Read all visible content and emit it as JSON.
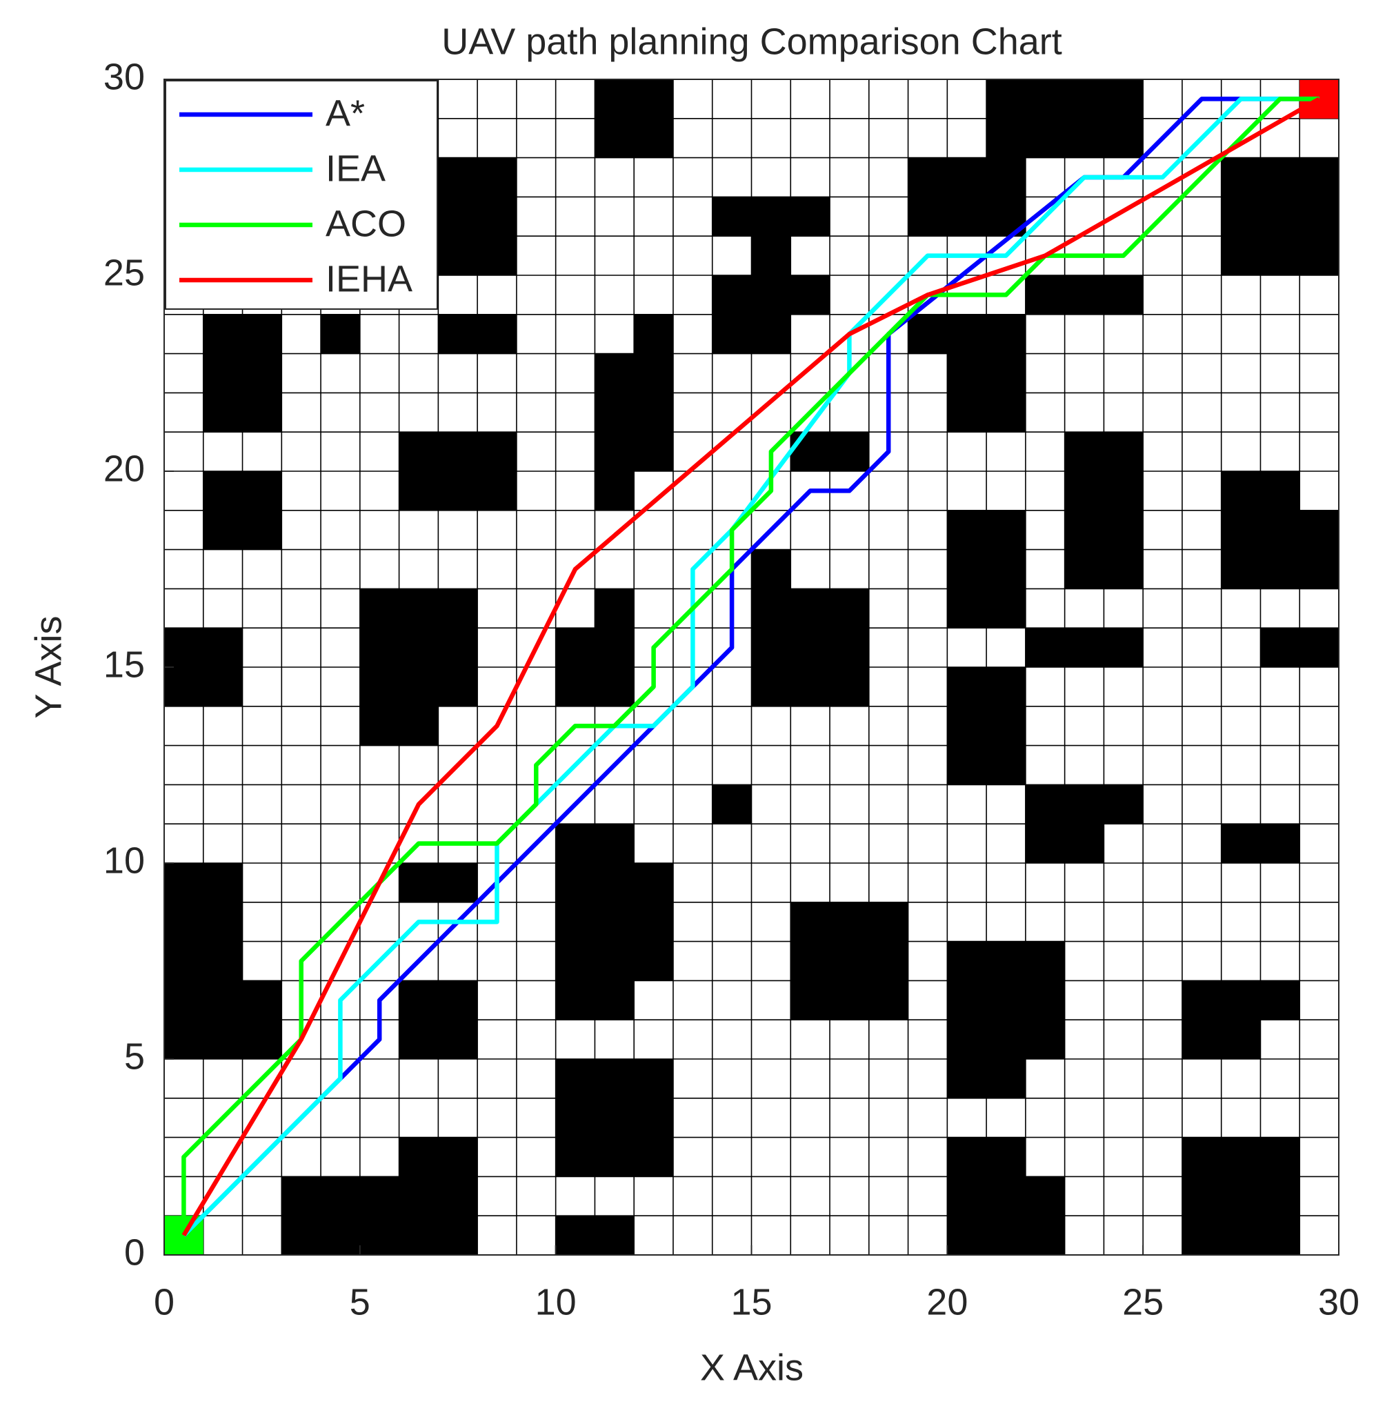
{
  "chart_data": {
    "type": "line",
    "title": "UAV path planning Comparison Chart",
    "x_label": "X Axis",
    "y_label": "Y Axis",
    "xlim": [
      0,
      30
    ],
    "ylim": [
      0,
      30
    ],
    "xticks": [
      0,
      5,
      10,
      15,
      20,
      25,
      30
    ],
    "yticks": [
      0,
      5,
      10,
      15,
      20,
      25,
      30
    ],
    "cell_size": 1,
    "obstacle_color": "#000000",
    "legend": "upper left",
    "start": {
      "cell": [
        0,
        0,
        1,
        1
      ],
      "color": "#00ff00"
    },
    "goal": {
      "cell": [
        29,
        29,
        30,
        30
      ],
      "color": "#ff0000"
    },
    "obstacles": [
      [
        11,
        28,
        13,
        30
      ],
      [
        21,
        28,
        25,
        30
      ],
      [
        7,
        25,
        9,
        28
      ],
      [
        19,
        26,
        22,
        28
      ],
      [
        27,
        25,
        30,
        28
      ],
      [
        14,
        26,
        17,
        27
      ],
      [
        15,
        25,
        16,
        26
      ],
      [
        14,
        24,
        17,
        25
      ],
      [
        14,
        23,
        16,
        24
      ],
      [
        22,
        24,
        25,
        25
      ],
      [
        1,
        21,
        3,
        24
      ],
      [
        4,
        23,
        5,
        24
      ],
      [
        7,
        23,
        9,
        24
      ],
      [
        12,
        23,
        13,
        24
      ],
      [
        11,
        20,
        13,
        23
      ],
      [
        11,
        19,
        12,
        20
      ],
      [
        19,
        23,
        22,
        24
      ],
      [
        20,
        21,
        22,
        23
      ],
      [
        6,
        19,
        9,
        21
      ],
      [
        16,
        20,
        18,
        21
      ],
      [
        1,
        18,
        3,
        20
      ],
      [
        23,
        17,
        25,
        21
      ],
      [
        27,
        19,
        29,
        20
      ],
      [
        27,
        17,
        30,
        19
      ],
      [
        20,
        16,
        22,
        19
      ],
      [
        15,
        17,
        16,
        18
      ],
      [
        15,
        14,
        18,
        17
      ],
      [
        5,
        14,
        8,
        17
      ],
      [
        5,
        13,
        7,
        14
      ],
      [
        11,
        16,
        12,
        17
      ],
      [
        10,
        14,
        12,
        16
      ],
      [
        0,
        14,
        2,
        16
      ],
      [
        22,
        15,
        25,
        16
      ],
      [
        28,
        15,
        30,
        16
      ],
      [
        20,
        12,
        22,
        15
      ],
      [
        14,
        11,
        15,
        12
      ],
      [
        22,
        11,
        25,
        12
      ],
      [
        22,
        10,
        24,
        11
      ],
      [
        27,
        10,
        29,
        11
      ],
      [
        10,
        10,
        12,
        11
      ],
      [
        10,
        7,
        13,
        10
      ],
      [
        10,
        6,
        12,
        7
      ],
      [
        6,
        9,
        8,
        10
      ],
      [
        0,
        7,
        2,
        10
      ],
      [
        0,
        5,
        3,
        7
      ],
      [
        16,
        6,
        19,
        9
      ],
      [
        20,
        5,
        23,
        8
      ],
      [
        20,
        4,
        22,
        5
      ],
      [
        6,
        5,
        8,
        7
      ],
      [
        26,
        6,
        29,
        7
      ],
      [
        26,
        5,
        28,
        6
      ],
      [
        10,
        2,
        13,
        5
      ],
      [
        6,
        2,
        8,
        3
      ],
      [
        3,
        0,
        8,
        2
      ],
      [
        10,
        0,
        12,
        1
      ],
      [
        20,
        2,
        22,
        3
      ],
      [
        20,
        0,
        23,
        2
      ],
      [
        26,
        0,
        29,
        3
      ]
    ],
    "series": [
      {
        "name": "A*",
        "color": "#0000ff",
        "x": [
          0.5,
          4.5,
          5.5,
          5.5,
          14.5,
          14.5,
          16.5,
          17.5,
          18.5,
          18.5,
          23.5,
          24.5,
          26.5,
          29.5
        ],
        "y": [
          0.5,
          4.5,
          5.5,
          6.5,
          15.5,
          17.5,
          19.5,
          19.5,
          20.5,
          23.5,
          27.5,
          27.5,
          29.5,
          29.5
        ]
      },
      {
        "name": "IEA",
        "color": "#00ffff",
        "x": [
          0.5,
          4.5,
          4.5,
          6.5,
          8.5,
          8.5,
          11.5,
          12.5,
          13.5,
          13.5,
          14.5,
          17.5,
          17.5,
          19.5,
          21.5,
          23.5,
          24.5,
          25.5,
          27.5,
          29.5
        ],
        "y": [
          0.5,
          4.5,
          6.5,
          8.5,
          8.5,
          10.5,
          13.5,
          13.5,
          14.5,
          17.5,
          18.5,
          22.5,
          23.5,
          25.5,
          25.5,
          27.5,
          27.5,
          27.5,
          29.5,
          29.5
        ]
      },
      {
        "name": "ACO",
        "color": "#00ff00",
        "x": [
          0.5,
          0.5,
          3.5,
          3.5,
          6.5,
          8.5,
          9.5,
          9.5,
          10.5,
          11.5,
          12.5,
          12.5,
          14.5,
          14.5,
          15.5,
          15.5,
          19.5,
          21.5,
          22.5,
          24.5,
          28.5,
          29.5
        ],
        "y": [
          0.5,
          2.5,
          5.5,
          7.5,
          10.5,
          10.5,
          11.5,
          12.5,
          13.5,
          13.5,
          14.5,
          15.5,
          17.5,
          18.5,
          19.5,
          20.5,
          24.5,
          24.5,
          25.5,
          25.5,
          29.5,
          29.5
        ]
      },
      {
        "name": "IEHA",
        "color": "#ff0000",
        "x": [
          0.5,
          3.5,
          6.5,
          8.5,
          10.5,
          17.5,
          19.5,
          22.5,
          29.5
        ],
        "y": [
          0.5,
          5.5,
          11.5,
          13.5,
          17.5,
          23.5,
          24.5,
          25.5,
          29.5
        ]
      }
    ]
  }
}
